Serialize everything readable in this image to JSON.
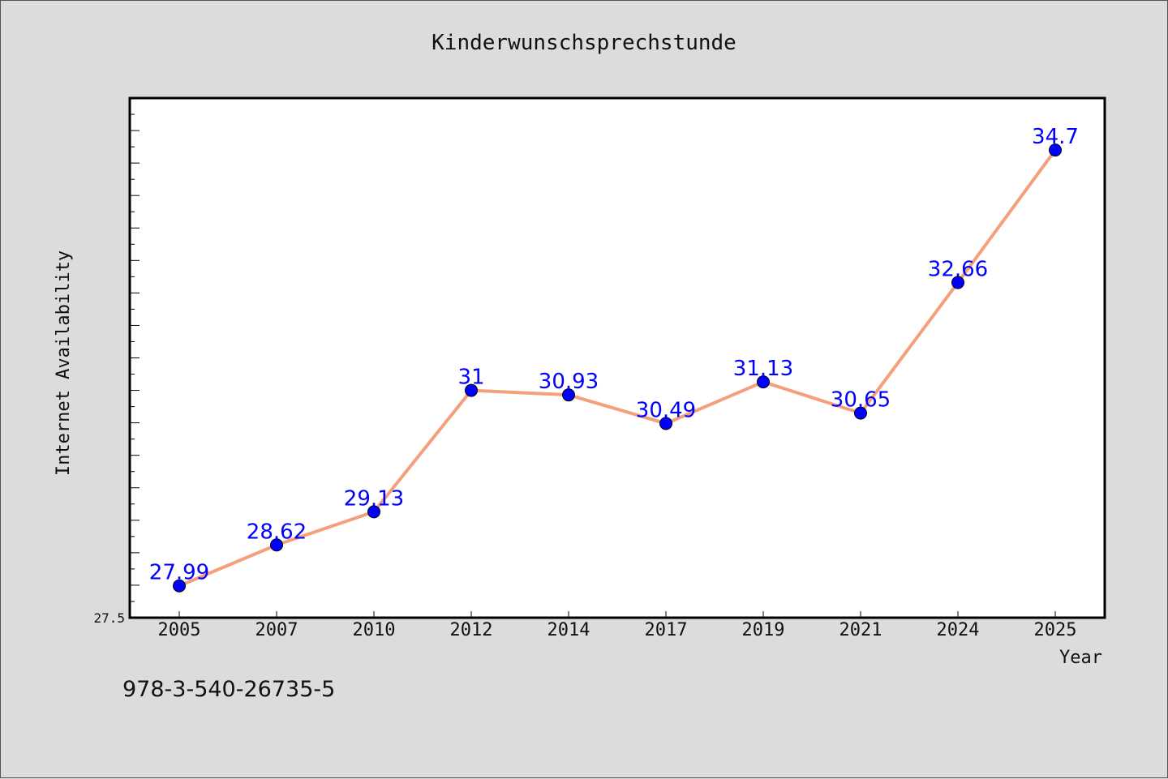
{
  "chart_data": {
    "type": "line",
    "title": "Kinderwunschsprechstunde",
    "xlabel": "Year",
    "ylabel": "Internet Availability",
    "categories": [
      "2005",
      "2007",
      "2010",
      "2012",
      "2014",
      "2017",
      "2019",
      "2021",
      "2024",
      "2025"
    ],
    "values": [
      27.99,
      28.62,
      29.13,
      31,
      30.93,
      30.49,
      31.13,
      30.65,
      32.66,
      34.7
    ],
    "value_labels": [
      "27.99",
      "28.62",
      "29.13",
      "31",
      "30.93",
      "30.49",
      "31.13",
      "30.65",
      "32.66",
      "34.7"
    ],
    "ylim": [
      27.5,
      35.5
    ],
    "y_tick_labels": [
      "27.5"
    ],
    "grid": false,
    "legend": "none",
    "line_color": "#f4a07c",
    "marker_color": "#0000ff",
    "label_color": "#0000ff"
  },
  "caption": "978-3-540-26735-5"
}
